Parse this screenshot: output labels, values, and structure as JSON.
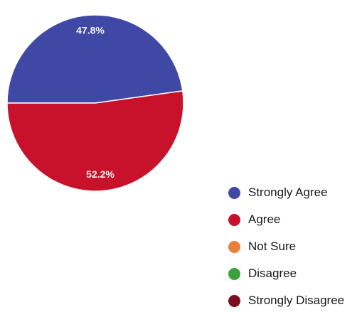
{
  "chart_data": {
    "type": "pie",
    "title": "",
    "slices": [
      {
        "label": "Strongly Agree",
        "value": 47.8,
        "display": "47.8%",
        "color": "#3f48a5"
      },
      {
        "label": "Agree",
        "value": 52.2,
        "display": "52.2%",
        "color": "#c8122c"
      },
      {
        "label": "Not Sure",
        "value": 0,
        "display": "",
        "color": "#e8823a"
      },
      {
        "label": "Disagree",
        "value": 0,
        "display": "",
        "color": "#3aa33a"
      },
      {
        "label": "Strongly Disagree",
        "value": 0,
        "display": "",
        "color": "#7a1022"
      }
    ],
    "legend": {
      "position": "bottom-right",
      "items": [
        "Strongly Agree",
        "Agree",
        "Not Sure",
        "Disagree",
        "Strongly Disagree"
      ]
    }
  }
}
